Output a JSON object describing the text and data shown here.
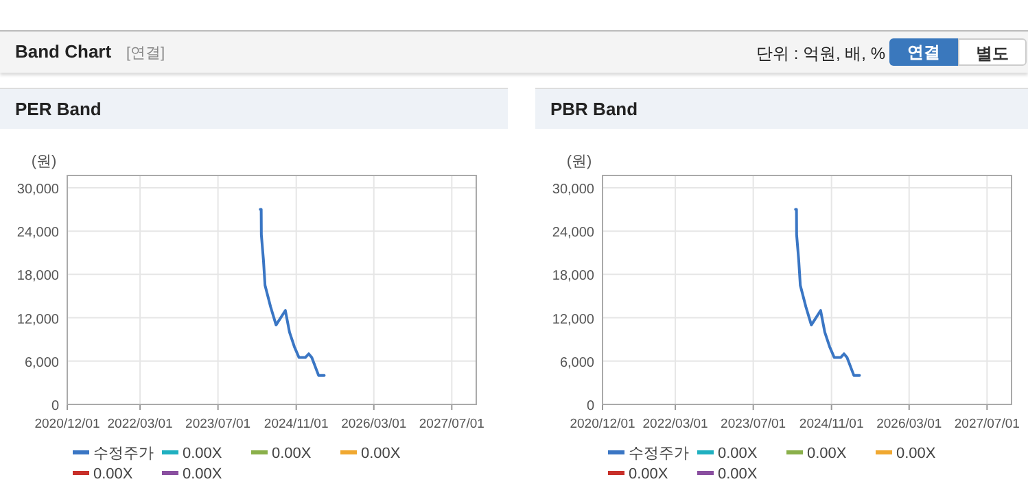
{
  "chart_data": [
    {
      "type": "line",
      "title": "PER Band",
      "ylabel": "(원)",
      "annotations": [
        "Band Chart",
        "[연결]",
        "단위 : 억원, 배, %",
        "연결",
        "별도"
      ],
      "x": [
        "2024-03-21",
        "2024-03-27",
        "2024-03-28",
        "2024-04-10",
        "2024-04-20",
        "2024-05-25",
        "2024-06-28",
        "2024-08-25",
        "2024-09-20",
        "2024-10-20",
        "2024-11-18",
        "2024-12-28",
        "2025-01-18",
        "2025-02-06",
        "2025-03-21",
        "2025-04-25"
      ],
      "series": [
        {
          "name": "수정주가",
          "color": "#3a76c4",
          "values": [
            27000,
            27000,
            23500,
            20000,
            16500,
            13500,
            11000,
            13000,
            10000,
            8000,
            6500,
            6500,
            7000,
            6500,
            4000,
            4000
          ]
        },
        {
          "name": "0.00X",
          "color": "#1fb0c0",
          "values": [
            null,
            null,
            null,
            null,
            null,
            null,
            null,
            null,
            null,
            null,
            null,
            null,
            null,
            null,
            null,
            null
          ]
        },
        {
          "name": "0.00X",
          "color": "#8ab04a",
          "values": [
            null,
            null,
            null,
            null,
            null,
            null,
            null,
            null,
            null,
            null,
            null,
            null,
            null,
            null,
            null,
            null
          ]
        },
        {
          "name": "0.00X",
          "color": "#f0a830",
          "values": [
            null,
            null,
            null,
            null,
            null,
            null,
            null,
            null,
            null,
            null,
            null,
            null,
            null,
            null,
            null,
            null
          ]
        },
        {
          "name": "0.00X",
          "color": "#c8302a",
          "values": [
            null,
            null,
            null,
            null,
            null,
            null,
            null,
            null,
            null,
            null,
            null,
            null,
            null,
            null,
            null,
            null
          ]
        },
        {
          "name": "0.00X",
          "color": "#8a4fa0",
          "values": [
            null,
            null,
            null,
            null,
            null,
            null,
            null,
            null,
            null,
            null,
            null,
            null,
            null,
            null,
            null,
            null
          ]
        }
      ],
      "xlim": [
        "2020-12-01",
        "2027-12-01"
      ],
      "xticks": [
        {
          "value": "2020-12-01",
          "label": "2020/12/01"
        },
        {
          "value": "2022-03-01",
          "label": "2022/03/01"
        },
        {
          "value": "2023-07-01",
          "label": "2023/07/01"
        },
        {
          "value": "2024-11-01",
          "label": "2024/11/01"
        },
        {
          "value": "2026-03-01",
          "label": "2026/03/01"
        },
        {
          "value": "2027-07-01",
          "label": "2027/07/01"
        }
      ],
      "ylim": [
        0,
        31700
      ],
      "yticks": [
        0,
        {
          "value": 6000,
          "label": "6,000"
        },
        {
          "value": 12000,
          "label": "12,000"
        },
        {
          "value": 18000,
          "label": "18,000"
        },
        {
          "value": 24000,
          "label": "24,000"
        },
        {
          "value": 30000,
          "label": "30,000"
        }
      ],
      "grid": true,
      "legend": "bottom"
    },
    {
      "type": "line",
      "title": "PBR Band",
      "ylabel": "(원)",
      "x": [
        "2024-03-21",
        "2024-03-27",
        "2024-03-28",
        "2024-04-10",
        "2024-04-20",
        "2024-05-25",
        "2024-06-28",
        "2024-08-25",
        "2024-09-20",
        "2024-10-20",
        "2024-11-18",
        "2024-12-28",
        "2025-01-18",
        "2025-02-06",
        "2025-03-21",
        "2025-04-25"
      ],
      "series": [
        {
          "name": "수정주가",
          "color": "#3a76c4",
          "values": [
            27000,
            27000,
            23500,
            20000,
            16500,
            13500,
            11000,
            13000,
            10000,
            8000,
            6500,
            6500,
            7000,
            6500,
            4000,
            4000
          ]
        },
        {
          "name": "0.00X",
          "color": "#1fb0c0",
          "values": [
            null,
            null,
            null,
            null,
            null,
            null,
            null,
            null,
            null,
            null,
            null,
            null,
            null,
            null,
            null,
            null
          ]
        },
        {
          "name": "0.00X",
          "color": "#8ab04a",
          "values": [
            null,
            null,
            null,
            null,
            null,
            null,
            null,
            null,
            null,
            null,
            null,
            null,
            null,
            null,
            null,
            null
          ]
        },
        {
          "name": "0.00X",
          "color": "#f0a830",
          "values": [
            null,
            null,
            null,
            null,
            null,
            null,
            null,
            null,
            null,
            null,
            null,
            null,
            null,
            null,
            null,
            null
          ]
        },
        {
          "name": "0.00X",
          "color": "#c8302a",
          "values": [
            null,
            null,
            null,
            null,
            null,
            null,
            null,
            null,
            null,
            null,
            null,
            null,
            null,
            null,
            null,
            null
          ]
        },
        {
          "name": "0.00X",
          "color": "#8a4fa0",
          "values": [
            null,
            null,
            null,
            null,
            null,
            null,
            null,
            null,
            null,
            null,
            null,
            null,
            null,
            null,
            null,
            null
          ]
        }
      ],
      "xlim": [
        "2020-12-01",
        "2027-12-01"
      ],
      "xticks": [
        {
          "value": "2020-12-01",
          "label": "2020/12/01"
        },
        {
          "value": "2022-03-01",
          "label": "2022/03/01"
        },
        {
          "value": "2023-07-01",
          "label": "2023/07/01"
        },
        {
          "value": "2024-11-01",
          "label": "2024/11/01"
        },
        {
          "value": "2026-03-01",
          "label": "2026/03/01"
        },
        {
          "value": "2027-07-01",
          "label": "2027/07/01"
        }
      ],
      "ylim": [
        0,
        31700
      ],
      "yticks": [
        0,
        {
          "value": 6000,
          "label": "6,000"
        },
        {
          "value": 12000,
          "label": "12,000"
        },
        {
          "value": 18000,
          "label": "18,000"
        },
        {
          "value": 24000,
          "label": "24,000"
        },
        {
          "value": 30000,
          "label": "30,000"
        }
      ],
      "grid": true,
      "legend": "bottom"
    }
  ]
}
